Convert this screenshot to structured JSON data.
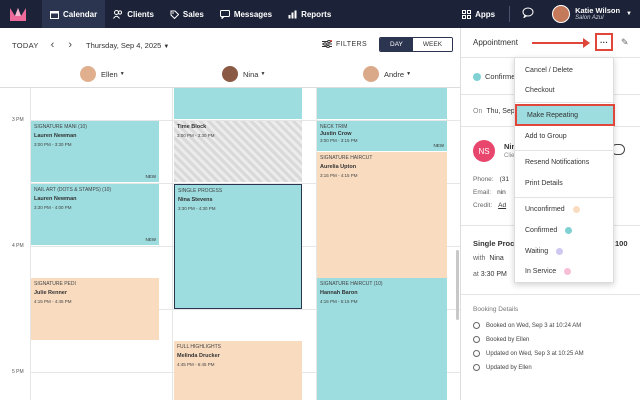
{
  "nav": {
    "items": [
      {
        "label": "Calendar",
        "icon": "calendar-icon",
        "active": true
      },
      {
        "label": "Clients",
        "icon": "users-icon"
      },
      {
        "label": "Sales",
        "icon": "tag-icon"
      },
      {
        "label": "Messages",
        "icon": "chat-icon"
      },
      {
        "label": "Reports",
        "icon": "bar-chart-icon"
      }
    ],
    "apps_label": "Apps",
    "user_name": "Katie Wilson",
    "user_business": "Salon Azul"
  },
  "toolbar": {
    "today": "TODAY",
    "date": "Thursday, Sep 4, 2025",
    "filters": "FILTERS",
    "view_day": "DAY",
    "view_week": "WEEK"
  },
  "staff": [
    "Ellen",
    "Nina",
    "Andre"
  ],
  "times": [
    "3 PM",
    "4 PM",
    "5 PM"
  ],
  "appointments": [
    {
      "svc": "SIGNATURE MANI (10)",
      "client": "Lauren Newman",
      "time": "3:00 PM - 3:30 PM",
      "new": "NEW"
    },
    {
      "svc": "NAIL ART (DOTS & STAMPS) (10)",
      "client": "Lauren Newman",
      "time": "3:30 PM - 4:00 PM",
      "new": "NEW"
    },
    {
      "svc": "SIGNATURE PEDI",
      "client": "Julie Renner",
      "time": "4:15 PM - 4:45 PM"
    },
    {
      "svc": "Time Block",
      "client": "",
      "time": "3:00 PM - 3:30 PM"
    },
    {
      "svc": "SINGLE PROCESS",
      "client": "Nina Stevens",
      "time": "3:30 PM - 4:30 PM"
    },
    {
      "svc": "FULL HIGHLIGHTS",
      "client": "Melinda Drucker",
      "time": "4:45 PM - 6:45 PM"
    },
    {
      "svc": "NECK TRIM",
      "client": "Justin Crow",
      "time": "3:00 PM - 3:15 PM",
      "new": "NEW"
    },
    {
      "svc": "SIGNATURE HAIRCUT",
      "client": "Aurelia Upton",
      "time": "3:15 PM - 4:15 PM"
    },
    {
      "svc": "SIGNATURE HAIRCUT (10)",
      "client": "Hannah Baron",
      "time": "4:15 PM - 5:15 PM"
    }
  ],
  "panel": {
    "title": "Appointment",
    "status": "Confirmed",
    "on_label": "On",
    "on_value": "Thu, Sep",
    "initials": "NS",
    "client_name": "Nin",
    "client_sub": "Clie",
    "phone_label": "Phone:",
    "phone_value": "(31",
    "email_label": "Email:",
    "email_value": "nin",
    "credit_label": "Credit:",
    "credit_value": "Ad",
    "service": "Single Proce",
    "price": "100",
    "with_label": "with",
    "with_value": "Nina",
    "at_label": "at",
    "at_value": "3:30 PM",
    "booking_title": "Booking Details",
    "booking": [
      "Booked on Wed, Sep 3 at 10:24 AM",
      "Booked by Ellen",
      "Updated on Wed, Sep 3 at 10:25 AM",
      "Updated by Ellen"
    ]
  },
  "menu": {
    "items": [
      {
        "label": "Cancel / Delete"
      },
      {
        "label": "Checkout"
      },
      {
        "label": "Make Repeating"
      },
      {
        "label": "Add to Group"
      },
      {
        "label": "Resend Notifications"
      },
      {
        "label": "Print Details"
      },
      {
        "label": "Unconfirmed",
        "dot": "#f9dcc0"
      },
      {
        "label": "Confirmed",
        "dot": "#7fd1d3"
      },
      {
        "label": "Waiting",
        "dot": "#cfc8f0"
      },
      {
        "label": "In Service",
        "dot": "#f7bfd6"
      }
    ]
  },
  "colors": {
    "nav_bg": "#1c2338",
    "accent": "#2c3550",
    "teal": "#9ddcdf",
    "peach": "#f9dcc0",
    "highlight_red": "#e0463a",
    "avatar_pink": "#e8466c"
  }
}
